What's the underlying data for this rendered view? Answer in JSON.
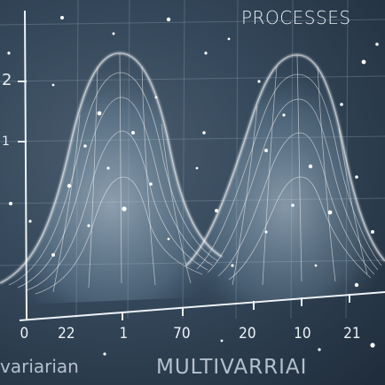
{
  "title": "PROCESSES",
  "y_labels": [
    "2",
    "1"
  ],
  "x_tick_labels": [
    "0",
    "22",
    "1",
    "70",
    "20",
    "10",
    "21"
  ],
  "bottom_text_left": "variarian",
  "bottom_text_right": "MULTIVARRIAI",
  "colors": {
    "background": "#34475a",
    "curve": "#ffffff",
    "grid": "#8fa2b4"
  }
}
